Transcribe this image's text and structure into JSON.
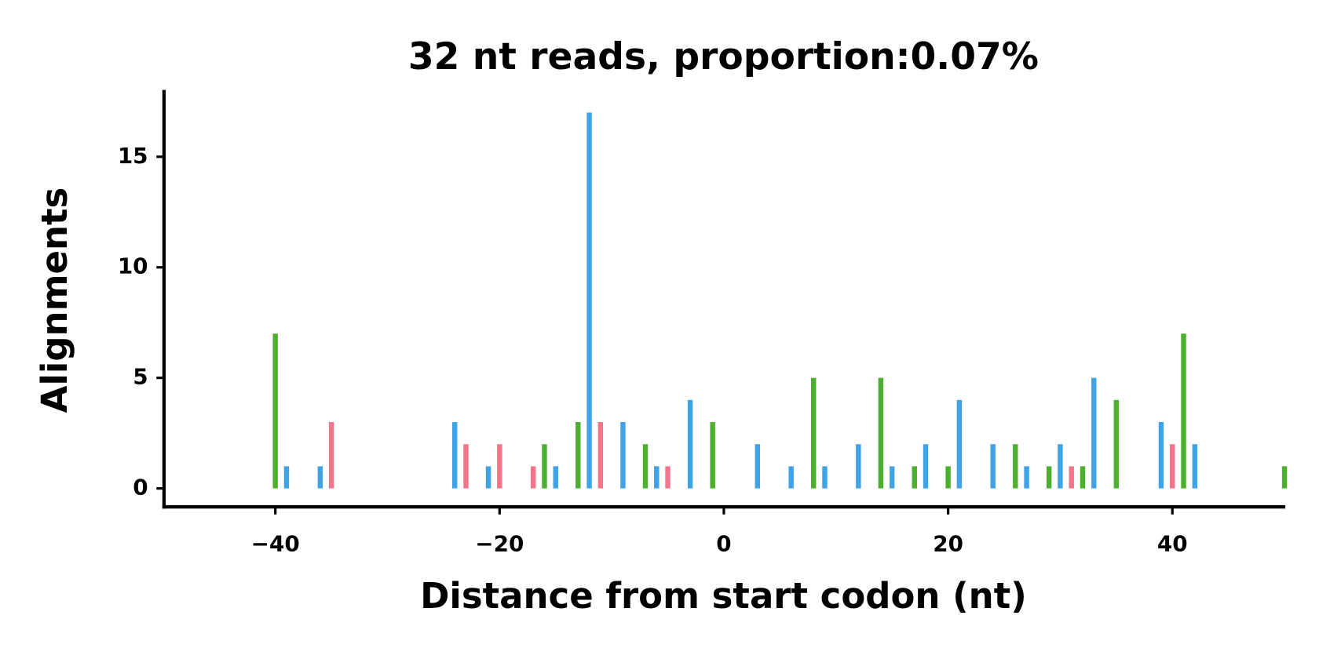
{
  "chart_data": {
    "type": "bar",
    "title": "32 nt reads, proportion:0.07%",
    "xlabel": "Distance from start codon (nt)",
    "ylabel": "Alignments",
    "xlim": [
      -50,
      50
    ],
    "ylim": [
      -0.85,
      18
    ],
    "xticks": [
      {
        "value": -40,
        "label": "−40"
      },
      {
        "value": -20,
        "label": "−20"
      },
      0,
      20,
      40
    ],
    "yticks": [
      0,
      5,
      10,
      15
    ],
    "series": [
      {
        "color": "#4daf2f",
        "x": [
          -40,
          -16,
          -13,
          -7,
          -1,
          8,
          14,
          17,
          20,
          26,
          29,
          32,
          35,
          41,
          50
        ],
        "values": [
          7,
          2,
          3,
          2,
          3,
          5,
          5,
          1,
          1,
          2,
          1,
          1,
          4,
          7,
          1
        ]
      },
      {
        "color": "#3fa3e6",
        "x": [
          -39,
          -36,
          -24,
          -21,
          -15,
          -12,
          -9,
          -6,
          -3,
          3,
          6,
          9,
          12,
          15,
          18,
          21,
          24,
          27,
          30,
          33,
          39,
          42
        ],
        "values": [
          1,
          1,
          3,
          1,
          1,
          17,
          3,
          1,
          4,
          2,
          1,
          1,
          2,
          1,
          2,
          4,
          2,
          1,
          2,
          5,
          3,
          2
        ]
      },
      {
        "color": "#f2758b",
        "x": [
          -35,
          -23,
          -20,
          -17,
          -11,
          -5,
          31,
          40
        ],
        "values": [
          3,
          2,
          2,
          1,
          3,
          1,
          1,
          2
        ]
      }
    ]
  }
}
